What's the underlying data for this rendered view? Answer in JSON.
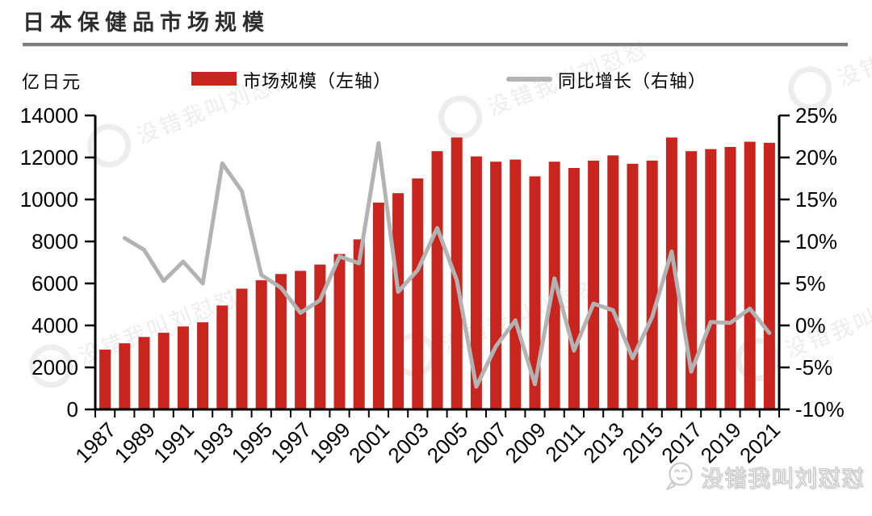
{
  "title": "日本保健品市场规模",
  "unit_label": "亿日元",
  "legend": {
    "bar_label": "市场规模（左轴）",
    "line_label": "同比增长（右轴）"
  },
  "brand": {
    "text": "没错我叫刘怼怼"
  },
  "watermark": {
    "text": "没错我叫刘怼怼"
  },
  "colors": {
    "bar": "#c8251e",
    "line": "#b3b3b3",
    "axis": "#000000",
    "title_text": "#2d2d2d",
    "separator": "#7e7e7e",
    "watermark": "#ededed"
  },
  "chart_data": {
    "type": "bar+line",
    "title": "日本保健品市场规模",
    "legend_position": "top",
    "grid": false,
    "categories": [
      1987,
      1988,
      1989,
      1990,
      1991,
      1992,
      1993,
      1994,
      1995,
      1996,
      1997,
      1998,
      1999,
      2000,
      2001,
      2002,
      2003,
      2004,
      2005,
      2006,
      2007,
      2008,
      2009,
      2010,
      2011,
      2012,
      2013,
      2014,
      2015,
      2016,
      2017,
      2018,
      2019,
      2020,
      2021
    ],
    "series": [
      {
        "name": "市场规模（左轴）",
        "type": "bar",
        "axis": "left",
        "unit": "亿日元",
        "color": "#c8251e",
        "values": [
          2850,
          3150,
          3450,
          3650,
          3950,
          4150,
          4950,
          5750,
          6150,
          6450,
          6600,
          6900,
          7400,
          8100,
          9850,
          10300,
          11000,
          12300,
          12950,
          12050,
          11800,
          11900,
          11100,
          11800,
          11500,
          11850,
          12100,
          11700,
          11850,
          12950,
          12300,
          12400,
          12500,
          12750,
          12700
        ]
      },
      {
        "name": "同比增长（右轴）",
        "type": "line",
        "axis": "right",
        "unit": "%",
        "color": "#b3b3b3",
        "values": [
          null,
          10.4,
          9.0,
          5.3,
          7.6,
          5.0,
          19.3,
          16.0,
          6.0,
          4.5,
          1.5,
          3.0,
          8.2,
          7.4,
          21.7,
          4.0,
          6.6,
          11.6,
          5.4,
          -7.3,
          -2.5,
          0.6,
          -7.0,
          5.6,
          -3.0,
          2.6,
          1.8,
          -3.9,
          1.0,
          8.8,
          -5.5,
          0.4,
          0.3,
          2.0,
          -0.9
        ]
      }
    ],
    "left_axis": {
      "label": "亿日元",
      "min": 0,
      "max": 14000,
      "step": 2000,
      "tick_labels": [
        "0",
        "2000",
        "4000",
        "6000",
        "8000",
        "10000",
        "12000",
        "14000"
      ]
    },
    "right_axis": {
      "min": -10,
      "max": 25,
      "step": 5,
      "tick_labels": [
        "-10%",
        "-5%",
        "0%",
        "5%",
        "10%",
        "15%",
        "20%",
        "25%"
      ]
    },
    "x_axis": {
      "label_rotation": -45,
      "tick_labels": [
        "1987",
        "1989",
        "1991",
        "1993",
        "1995",
        "1997",
        "1999",
        "2001",
        "2003",
        "2005",
        "2007",
        "2009",
        "2011",
        "2013",
        "2015",
        "2017",
        "2019",
        "2021"
      ]
    }
  }
}
